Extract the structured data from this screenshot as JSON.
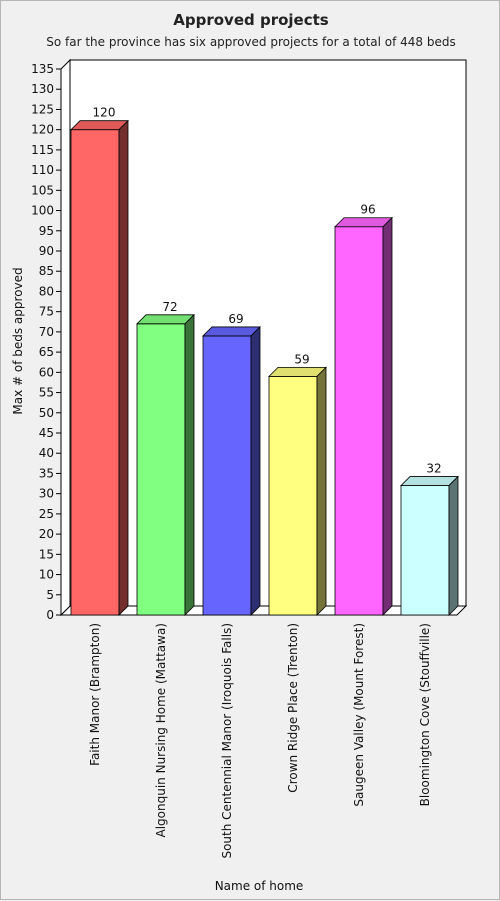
{
  "chart_data": {
    "type": "bar",
    "title": "Approved projects",
    "subtitle": "So far the province has six approved projects for a total of 448 beds",
    "xlabel": "Name of home",
    "ylabel": "Max # of beds approved",
    "ylim": [
      0,
      135
    ],
    "ytick_step": 5,
    "grid": false,
    "legend": "none",
    "categories": [
      "Faith Manor (Brampton)",
      "Algonquin Nursing Home (Mattawa)",
      "South Centennial Manor (Iroquois Falls)",
      "Crown Ridge Place (Trenton)",
      "Saugeen Valley (Mount Forest)",
      "Bloomington Cove (Stouffville)"
    ],
    "values": [
      120,
      72,
      69,
      59,
      96,
      32
    ],
    "colors": [
      "#ff6666",
      "#80ff80",
      "#6666ff",
      "#ffff80",
      "#ff66ff",
      "#ccffff"
    ]
  }
}
